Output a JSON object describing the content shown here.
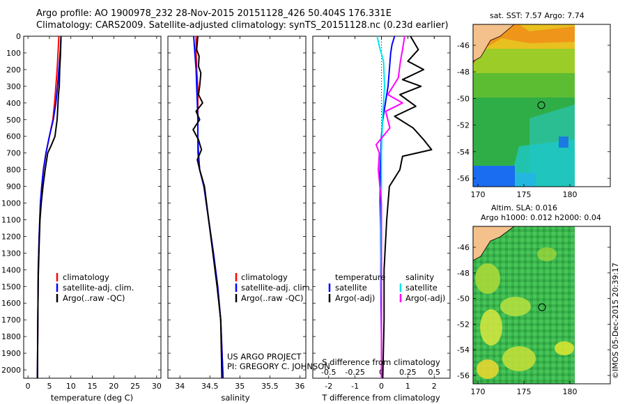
{
  "header": {
    "line1": "Argo profile: AO 1900978_232 28-Nov-2015 20151128_426 50.404S 176.331E",
    "line2": "Climatology: CARS2009. Satellite-adjusted climatology: synTS_20151128.nc (0.23d earlier)"
  },
  "depth_ticks": [
    "0",
    "100",
    "200",
    "300",
    "400",
    "500",
    "600",
    "700",
    "800",
    "900",
    "1000",
    "1100",
    "1200",
    "1300",
    "1400",
    "1500",
    "1600",
    "1700",
    "1800",
    "1900",
    "2000"
  ],
  "panels": {
    "temperature": {
      "xlabel": "temperature (deg C)",
      "xticks": [
        "0",
        "5",
        "10",
        "15",
        "20",
        "25",
        "30"
      ],
      "legend": [
        "climatology",
        "satellite-adj. clim.",
        "Argo(..raw -QC)"
      ]
    },
    "salinity": {
      "xlabel": "salinity",
      "xticks": [
        "34",
        "34.5",
        "35",
        "35.5",
        "36"
      ],
      "legend": [
        "climatology",
        "satellite-adj. clim.",
        "Argo(..raw -QC)"
      ],
      "annotation1": "US ARGO PROJECT",
      "annotation2": "PI: GREGORY C. JOHNSON"
    },
    "difference": {
      "xlabel": "T difference from climatology",
      "top_axis_label": "S difference from climatology",
      "bottom_ticks": [
        "-2",
        "-1",
        "0",
        "1",
        "2"
      ],
      "top_ticks": [
        "-0.5",
        "-0.25",
        "0",
        "0.25",
        "0.5"
      ],
      "legend_temp_header": "temperature",
      "legend_sal_header": "salinity",
      "legend_temp": [
        "satellite",
        "Argo(-adj)"
      ],
      "legend_sal": [
        "satellite",
        "Argo(-adj)"
      ]
    }
  },
  "maps": {
    "sst_title": "sat. SST: 7.57 Argo: 7.74",
    "sla_title1": "Altim. SLA: 0.016",
    "sla_title2": "Argo h1000: 0.012 h2000: 0.04",
    "lat_ticks": [
      "-46",
      "-48",
      "-50",
      "-52",
      "-54",
      "-56"
    ],
    "lon_ticks": [
      "170",
      "175",
      "180"
    ]
  },
  "footer_vertical": "©IMOS 05-Dec-2015 20:39:17",
  "colors": {
    "climatology": "#ff0000",
    "satellite_adj": "#0000ff",
    "argo": "#000000",
    "sal_satellite": "#00e5ee",
    "sal_argo": "#ff00ff",
    "land": "#f4c08c"
  },
  "chart_data": [
    {
      "type": "line",
      "xlabel": "temperature (deg C)",
      "ylabel": "",
      "xlim": [
        -1,
        31
      ],
      "ylim": [
        2050,
        0
      ],
      "series": [
        {
          "name": "climatology",
          "color": "#ff0000",
          "x": [
            7.2,
            7.0,
            6.8,
            6.5,
            6.2,
            5.8,
            5.0,
            4.2,
            3.6,
            3.2,
            2.9,
            2.6,
            2.4,
            2.3,
            2.2
          ],
          "y": [
            0,
            100,
            200,
            300,
            400,
            500,
            600,
            700,
            800,
            900,
            1000,
            1200,
            1400,
            1700,
            2050
          ]
        },
        {
          "name": "satellite-adj. clim.",
          "color": "#0000ff",
          "x": [
            7.7,
            7.5,
            7.2,
            6.9,
            6.5,
            5.9,
            5.0,
            4.2,
            3.6,
            3.2,
            2.9,
            2.6,
            2.4,
            2.3,
            2.2
          ],
          "y": [
            0,
            100,
            200,
            300,
            400,
            500,
            600,
            700,
            800,
            900,
            1000,
            1200,
            1400,
            1700,
            2050
          ]
        },
        {
          "name": "Argo(..raw -QC)",
          "color": "#000000",
          "x": [
            7.7,
            7.6,
            7.4,
            7.3,
            7.1,
            7.0,
            6.8,
            6.3,
            5.5,
            4.6,
            4.0,
            3.5,
            3.1,
            2.8,
            2.6,
            2.4,
            2.3,
            2.2
          ],
          "y": [
            0,
            100,
            200,
            300,
            350,
            400,
            500,
            600,
            650,
            700,
            800,
            900,
            1000,
            1100,
            1250,
            1450,
            1700,
            2050
          ]
        }
      ]
    },
    {
      "type": "line",
      "xlabel": "salinity",
      "xlim": [
        33.8,
        36.1
      ],
      "ylim": [
        2050,
        0
      ],
      "series": [
        {
          "name": "climatology",
          "color": "#ff0000",
          "x": [
            34.27,
            34.27,
            34.28,
            34.3,
            34.3,
            34.3,
            34.3,
            34.3,
            34.33,
            34.4,
            34.48,
            34.56,
            34.63,
            34.68,
            34.72
          ],
          "y": [
            0,
            100,
            200,
            300,
            400,
            500,
            600,
            700,
            800,
            900,
            1100,
            1300,
            1500,
            1700,
            2050
          ]
        },
        {
          "name": "satellite-adj. clim.",
          "color": "#0000ff",
          "x": [
            34.23,
            34.25,
            34.27,
            34.28,
            34.29,
            34.3,
            34.3,
            34.31,
            34.33,
            34.4,
            34.48,
            34.56,
            34.63,
            34.68,
            34.72
          ],
          "y": [
            0,
            100,
            200,
            300,
            400,
            500,
            600,
            700,
            800,
            900,
            1100,
            1300,
            1500,
            1700,
            2050
          ]
        },
        {
          "name": "Argo(..raw -QC)",
          "color": "#000000",
          "x": [
            34.3,
            34.28,
            34.32,
            34.31,
            34.35,
            34.33,
            34.31,
            34.38,
            34.27,
            34.33,
            34.22,
            34.31,
            34.36,
            34.29,
            34.33,
            34.41,
            34.48,
            34.55,
            34.62,
            34.68,
            34.7
          ],
          "y": [
            0,
            80,
            120,
            180,
            220,
            300,
            350,
            400,
            450,
            500,
            560,
            620,
            680,
            740,
            800,
            900,
            1100,
            1300,
            1500,
            1700,
            2050
          ]
        }
      ]
    },
    {
      "type": "line",
      "xlabel": "T difference from climatology",
      "top_axis_label": "S difference from climatology",
      "xlim": [
        -2.6,
        2.6
      ],
      "top_xlim": [
        -0.65,
        0.65
      ],
      "ylim": [
        2050,
        0
      ],
      "series": [
        {
          "name": "temperature satellite",
          "color": "#0000ff",
          "axis": "T",
          "x": [
            0.5,
            0.4,
            0.35,
            0.3,
            0.25,
            0.15,
            0.05,
            0.0,
            -0.02,
            -0.05,
            -0.05,
            -0.03,
            -0.02,
            0.0,
            0.0
          ],
          "y": [
            0,
            50,
            100,
            200,
            300,
            400,
            500,
            600,
            700,
            800,
            1000,
            1200,
            1500,
            1800,
            2050
          ]
        },
        {
          "name": "temperature Argo(-adj)",
          "color": "#000000",
          "axis": "T",
          "x": [
            1.1,
            1.4,
            1.0,
            1.6,
            0.8,
            1.5,
            0.7,
            1.3,
            0.5,
            1.2,
            1.6,
            1.9,
            0.8,
            0.7,
            0.3,
            0.2,
            0.1,
            0.1,
            0.05
          ],
          "y": [
            0,
            80,
            150,
            200,
            260,
            300,
            350,
            420,
            480,
            550,
            620,
            680,
            720,
            800,
            900,
            1100,
            1400,
            1700,
            2050
          ]
        },
        {
          "name": "salinity satellite",
          "color": "#00e5ee",
          "axis": "S",
          "x": [
            -0.04,
            -0.02,
            0.02,
            0.03,
            0.01,
            0.0,
            0.0,
            -0.01,
            0.0,
            0.0
          ],
          "y": [
            0,
            60,
            150,
            300,
            500,
            700,
            900,
            1200,
            1600,
            2050
          ]
        },
        {
          "name": "salinity Argo(-adj)",
          "color": "#ff00ff",
          "axis": "S",
          "x": [
            0.22,
            0.2,
            0.18,
            0.16,
            0.06,
            0.2,
            0.04,
            0.08,
            -0.05,
            -0.02,
            -0.03,
            0.0,
            0.0,
            0.0
          ],
          "y": [
            0,
            80,
            150,
            250,
            350,
            400,
            450,
            550,
            650,
            700,
            800,
            1000,
            1500,
            2050
          ]
        }
      ]
    }
  ]
}
